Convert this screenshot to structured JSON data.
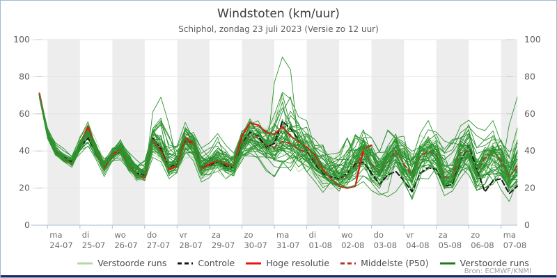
{
  "window": {
    "title": "Windstoten (km/uur)",
    "subtitle": "Schiphol, zondag 23 juli 2023 (Versie zo 12 uur)",
    "source": "Bron: ECMWF/KNMI"
  },
  "chart_data": {
    "type": "line",
    "title": "Windstoten (km/uur)",
    "subtitle": "Schiphol, zondag 23 juli 2023 (Versie zo 12 uur)",
    "ylabel": "",
    "ylim": [
      0,
      100
    ],
    "yticks": [
      0,
      20,
      40,
      60,
      80,
      100
    ],
    "time_step_hours": 6,
    "t_start_days": -0.25,
    "x_days": [
      {
        "weekday": "ma",
        "date": "24-07"
      },
      {
        "weekday": "di",
        "date": "25-07"
      },
      {
        "weekday": "wo",
        "date": "26-07"
      },
      {
        "weekday": "do",
        "date": "27-07"
      },
      {
        "weekday": "vr",
        "date": "28-07"
      },
      {
        "weekday": "za",
        "date": "29-07"
      },
      {
        "weekday": "zo",
        "date": "30-07"
      },
      {
        "weekday": "ma",
        "date": "31-07"
      },
      {
        "weekday": "di",
        "date": "01-08"
      },
      {
        "weekday": "wo",
        "date": "02-08"
      },
      {
        "weekday": "do",
        "date": "03-08"
      },
      {
        "weekday": "vr",
        "date": "04-08"
      },
      {
        "weekday": "za",
        "date": "05-08"
      },
      {
        "weekday": "zo",
        "date": "06-08"
      },
      {
        "weekday": "ma",
        "date": "07-08"
      }
    ],
    "series": {
      "hoge_resolutie": {
        "label": "Hoge resolutie",
        "values": [
          71,
          50,
          40,
          36,
          33,
          44,
          53,
          40,
          31,
          38,
          41,
          33,
          27,
          26,
          46,
          40,
          30,
          32,
          47,
          44,
          30,
          33,
          35,
          33,
          32,
          48,
          55,
          54,
          50,
          49,
          53,
          48,
          45,
          42,
          38,
          30,
          25,
          21,
          20,
          21,
          41,
          43
        ]
      },
      "controle": {
        "label": "Controle",
        "values": [
          71,
          49,
          40,
          37,
          34,
          42,
          47,
          39,
          31,
          37,
          40,
          33,
          28,
          27,
          47,
          41,
          31,
          33,
          46,
          44,
          31,
          32,
          34,
          32,
          31,
          44,
          50,
          48,
          42,
          44,
          56,
          52,
          46,
          40,
          33,
          28,
          26,
          25,
          28,
          33,
          34,
          28,
          22,
          27,
          29,
          24,
          18,
          28,
          31,
          30,
          21,
          22,
          35,
          43,
          30,
          18,
          24,
          25,
          17,
          21
        ]
      },
      "middelste_p50": {
        "label": "Middelste (P50)",
        "values": [
          70,
          49,
          40,
          36,
          34,
          43,
          49,
          40,
          31,
          38,
          41,
          33,
          28,
          27,
          45,
          40,
          31,
          33,
          45,
          43,
          31,
          33,
          35,
          33,
          32,
          43,
          48,
          47,
          43,
          42,
          45,
          44,
          41,
          39,
          35,
          29,
          26,
          25,
          27,
          32,
          39,
          33,
          29,
          34,
          40,
          33,
          27,
          37,
          40,
          38,
          26,
          26,
          39,
          40,
          29,
          36,
          40,
          35,
          26,
          32
        ]
      },
      "ensemble_envelope": {
        "label": "Verstoorde runs",
        "count": 48,
        "min": [
          68,
          45,
          36,
          33,
          29,
          33,
          36,
          30,
          24,
          28,
          30,
          25,
          20,
          20,
          28,
          30,
          22,
          24,
          30,
          28,
          20,
          22,
          25,
          22,
          20,
          28,
          30,
          28,
          25,
          24,
          27,
          25,
          22,
          20,
          18,
          15,
          14,
          12,
          15,
          18,
          16,
          14,
          12,
          15,
          18,
          14,
          10,
          14,
          18,
          16,
          10,
          12,
          16,
          18,
          12,
          10,
          14,
          14,
          10,
          12
        ],
        "max": [
          73,
          55,
          46,
          42,
          38,
          50,
          59,
          48,
          38,
          45,
          52,
          45,
          38,
          40,
          62,
          70,
          55,
          50,
          60,
          58,
          48,
          50,
          55,
          50,
          48,
          62,
          66,
          64,
          60,
          78,
          92,
          85,
          70,
          68,
          60,
          55,
          50,
          55,
          60,
          68,
          62,
          58,
          52,
          60,
          64,
          58,
          50,
          58,
          62,
          60,
          52,
          55,
          62,
          66,
          58,
          55,
          60,
          62,
          55,
          70
        ]
      }
    },
    "legend": [
      {
        "label": "Verstoorde runs",
        "color": "#b2d8a6",
        "dash": false
      },
      {
        "label": "Controle",
        "color": "#141414",
        "dash": true
      },
      {
        "label": "Hoge resolutie",
        "color": "#e8130f",
        "dash": false
      },
      {
        "label": "Middelste (P50)",
        "color": "#a93a2e",
        "dash": true
      },
      {
        "label": "Verstoorde runs",
        "color": "#1a7a1f",
        "dash": false
      }
    ],
    "colors": {
      "hres": "#e8130f",
      "control": "#141414",
      "p50": "#a93a2e",
      "ensemble": "#2d9430",
      "ensemble_light": "#b2d8a6",
      "ensemble_dark": "#1c7f22",
      "band": "#ededed",
      "grid": "#e3e3e3",
      "axis": "#b9c6de",
      "tick_label": "#6e6e6e",
      "bottom_bar": "#1b2a66",
      "border": "#9db8d9"
    },
    "layout": {
      "grid": true,
      "legend_position": "bottom",
      "alternating_day_bands": true
    }
  }
}
